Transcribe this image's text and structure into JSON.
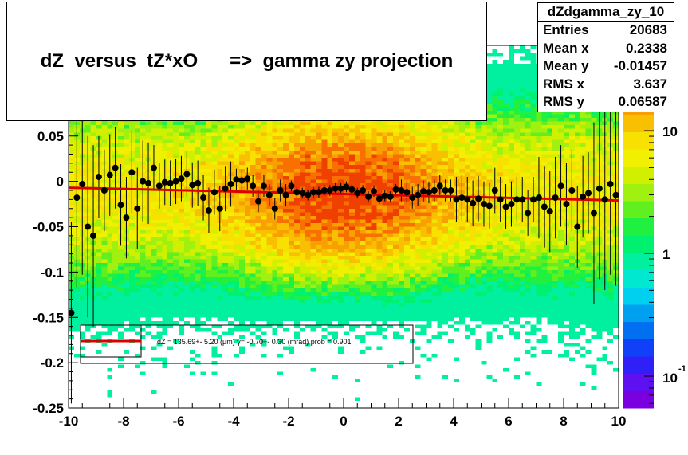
{
  "title": "dZ  versus  tZ*xO      =>  gamma zy projection",
  "stats": {
    "name": "dZdgamma_zy_10",
    "rows": [
      {
        "label": "Entries",
        "value": "20683"
      },
      {
        "label": "Mean x",
        "value": "0.2338"
      },
      {
        "label": "Mean y",
        "value": "-0.01457"
      },
      {
        "label": "RMS x",
        "value": "3.637"
      },
      {
        "label": "RMS y",
        "value": "0.06587"
      }
    ]
  },
  "legend": {
    "fit_text": "dZ = 135.69+- 5.20 (μm) γ= -0.70+- 0.30 (mrad) prob = 0.901",
    "fit_color": "#dd0000"
  },
  "colorbar": {
    "labels": [
      "10",
      "1"
    ],
    "exp_label": {
      "base": "10",
      "exponent": "-1"
    },
    "colors": [
      "#7a00e0",
      "#5d10f0",
      "#3020f8",
      "#1040f8",
      "#0070f0",
      "#00a0f0",
      "#00d0f0",
      "#00e8d0",
      "#00f0a0",
      "#00f070",
      "#20f040",
      "#60f020",
      "#a0f010",
      "#d0f000",
      "#f0f000",
      "#f8e000",
      "#f8c000",
      "#f8a000",
      "#f87000",
      "#f04000",
      "#e01000"
    ]
  },
  "chart_data": {
    "type": "scatter",
    "title": "dZ  versus  tZ*xO      =>  gamma zy projection",
    "xlim": [
      -10,
      10
    ],
    "ylim": [
      -0.25,
      0.15
    ],
    "xticks": [
      "-10",
      "-8",
      "-6",
      "-4",
      "-2",
      "0",
      "2",
      "4",
      "6",
      "8",
      "10"
    ],
    "yticks": [
      "-0.25",
      "-0.2",
      "-0.15",
      "-0.1",
      "-0.05",
      "0",
      "0.05",
      "0.1"
    ],
    "z_scale": "log",
    "series": [
      {
        "x": [
          -9.9,
          -9.7,
          -9.5,
          -9.3,
          -9.1,
          -8.9,
          -8.7,
          -8.5,
          -8.3,
          -8.1,
          -7.9,
          -7.7,
          -7.5,
          -7.3,
          -7.1,
          -6.9,
          -6.7,
          -6.5,
          -6.3,
          -6.1,
          -5.9,
          -5.7,
          -5.5,
          -5.3,
          -5.1,
          -4.9,
          -4.7,
          -4.5,
          -4.3,
          -4.1,
          -3.9,
          -3.7,
          -3.5,
          -3.3,
          -3.1,
          -2.9,
          -2.7,
          -2.5,
          -2.3,
          -2.1,
          -1.9,
          -1.7,
          -1.5,
          -1.3,
          -1.1,
          -0.9,
          -0.7,
          -0.5,
          -0.3,
          -0.1,
          0.1,
          0.3,
          0.5,
          0.7,
          0.9,
          1.1,
          1.3,
          1.5,
          1.7,
          1.9,
          2.1,
          2.3,
          2.5,
          2.7,
          2.9,
          3.1,
          3.3,
          3.5,
          3.7,
          3.9,
          4.1,
          4.3,
          4.5,
          4.7,
          4.9,
          5.1,
          5.3,
          5.5,
          5.7,
          5.9,
          6.1,
          6.3,
          6.5,
          6.7,
          6.9,
          7.1,
          7.3,
          7.5,
          7.7,
          7.9,
          8.1,
          8.3,
          8.5,
          8.7,
          8.9,
          9.1,
          9.3,
          9.5,
          9.7,
          9.9
        ],
        "y": [
          -0.145,
          -0.018,
          -0.003,
          -0.05,
          -0.06,
          0.005,
          -0.01,
          0.007,
          0.015,
          -0.026,
          -0.04,
          0.01,
          -0.03,
          0,
          -0.002,
          0.015,
          -0.005,
          -0.001,
          -0.002,
          0,
          0.003,
          0.008,
          -0.004,
          -0.002,
          -0.018,
          -0.032,
          -0.012,
          -0.03,
          -0.008,
          -0.003,
          0.002,
          0.001,
          0.003,
          -0.005,
          -0.022,
          -0.005,
          -0.015,
          -0.03,
          -0.01,
          -0.015,
          -0.005,
          -0.012,
          -0.013,
          -0.015,
          -0.012,
          -0.012,
          -0.01,
          -0.01,
          -0.008,
          -0.008,
          -0.006,
          -0.009,
          -0.013,
          -0.01,
          -0.017,
          -0.011,
          -0.019,
          -0.016,
          -0.017,
          -0.009,
          -0.01,
          -0.012,
          -0.018,
          -0.015,
          -0.011,
          -0.012,
          -0.01,
          -0.005,
          -0.01,
          -0.01,
          -0.02,
          -0.018,
          -0.02,
          -0.024,
          -0.019,
          -0.025,
          -0.027,
          -0.01,
          -0.02,
          -0.028,
          -0.025,
          -0.02,
          -0.02,
          -0.035,
          -0.02,
          -0.018,
          -0.028,
          -0.033,
          -0.018,
          -0.005,
          -0.025,
          -0.01,
          -0.05,
          -0.017,
          -0.013,
          -0.035,
          -0.008,
          -0.02,
          -0.003,
          -0.015
        ]
      },
      {
        "name": "fit",
        "x": [
          -10,
          10
        ],
        "y": [
          -0.007,
          -0.021
        ]
      }
    ]
  }
}
